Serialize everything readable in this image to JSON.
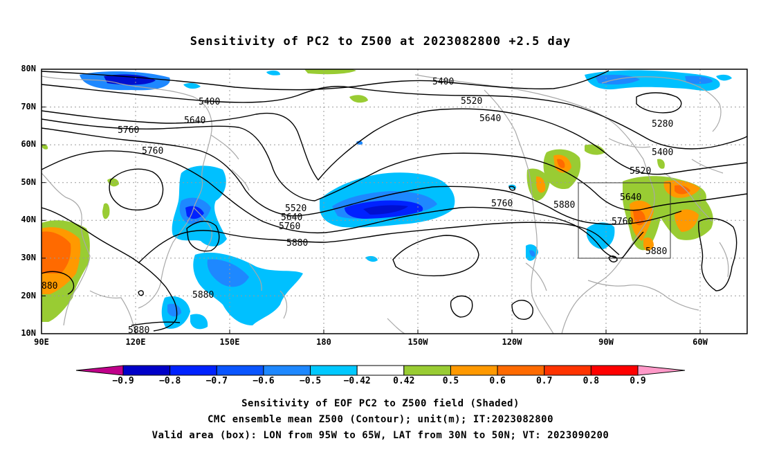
{
  "title": "Sensitivity of PC2 to Z500 at 2023082800 +2.5 day",
  "map": {
    "lat_labels": [
      "80N",
      "70N",
      "60N",
      "50N",
      "40N",
      "30N",
      "20N",
      "10N"
    ],
    "lon_labels": [
      "90E",
      "120E",
      "150E",
      "180",
      "150W",
      "120W",
      "90W",
      "60W"
    ],
    "valid_box": {
      "lon_from": "95W",
      "lon_to": "65W",
      "lat_from": "30N",
      "lat_to": "50N"
    },
    "contour_labels": [
      "5400",
      "5400",
      "5520",
      "5640",
      "5640",
      "5760",
      "5760",
      "5520",
      "5640",
      "5760",
      "5880",
      "5280",
      "5400",
      "5520",
      "5760",
      "5880",
      "5640",
      "5760",
      "5880",
      "5880",
      "880",
      "5880"
    ]
  },
  "colorbar": {
    "labels": [
      "−0.9",
      "−0.8",
      "−0.7",
      "−0.6",
      "−0.5",
      "−0.42",
      "0.42",
      "0.5",
      "0.6",
      "0.7",
      "0.8",
      "0.9"
    ],
    "colors": [
      "#c0008a",
      "#0000c8",
      "#0022ff",
      "#0a55ff",
      "#1e88ff",
      "#00c8ff",
      "#ffffff",
      "#99cc33",
      "#ff9900",
      "#ff6a00",
      "#ff3300",
      "#ff0000",
      "#ff99c8"
    ]
  },
  "colors": {
    "blue_dark": "#0010d0",
    "blue_mid": "#1a5cff",
    "blue_light": "#00c0ff",
    "green": "#99cc33",
    "orange": "#ff9900",
    "red_orange": "#ff5500",
    "coast": "#a8a8a8"
  },
  "footer": {
    "line1": "Sensitivity of EOF PC2 to Z500 field (Shaded)",
    "line2": "CMC ensemble mean Z500 (Contour); unit(m); IT:2023082800",
    "line3": "Valid area (box): LON from 95W to 65W, LAT from 30N to 50N; VT: 2023090200"
  }
}
